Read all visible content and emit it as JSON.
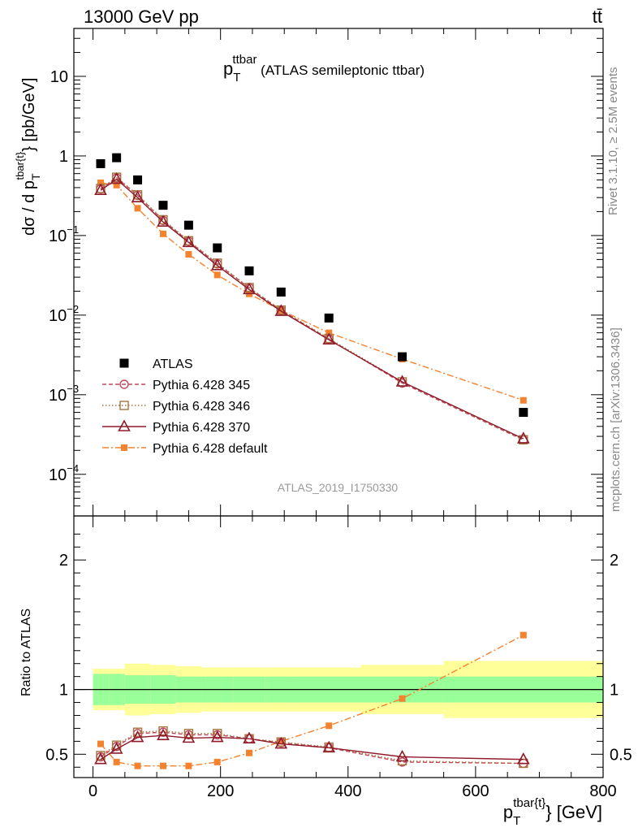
{
  "header": {
    "energy": "13000 GeV pp",
    "process": "tt̄"
  },
  "plot_title": {
    "main": "p",
    "sub": "T",
    "sup": "ttbar",
    "rest": " (ATLAS semileptonic ttbar)"
  },
  "analysis_id": "ATLAS_2019_I1750330",
  "side_labels": {
    "rivet": "Rivet 3.1.10, ≥ 2.5M events",
    "mcplots": "mcplots.cern.ch [arXiv:1306.3436]"
  },
  "labels": {
    "main_ylabel": {
      "pre": "dσ / d p",
      "sub": "T",
      "sup": "tbar{t}",
      "post": "} [pb/GeV]"
    },
    "ratio_ylabel": "Ratio to ATLAS",
    "xlabel": {
      "pre": "p",
      "sub": "T",
      "sup": "tbar{t}",
      "post": "} [GeV]"
    }
  },
  "colors": {
    "atlas": "#000000",
    "p345": "#c0475e",
    "p346": "#a4753e",
    "p370": "#8f1b2a",
    "pdefault": "#f4822f",
    "band_inner": "#99ff99",
    "band_outer": "#ffff99"
  },
  "chart_data": [
    {
      "type": "scatter",
      "panel": "main",
      "yscale": "log",
      "xlim": [
        -30,
        800
      ],
      "ylim": [
        3e-05,
        40
      ],
      "x_ticks": [
        0,
        200,
        400,
        600,
        800
      ],
      "y_ticks": [
        {
          "value": 0.0001,
          "label": "10",
          "exp": "−4"
        },
        {
          "value": 0.001,
          "label": "10",
          "exp": "−3"
        },
        {
          "value": 0.01,
          "label": "10",
          "exp": "−2"
        },
        {
          "value": 0.1,
          "label": "10",
          "exp": "−1"
        },
        {
          "value": 1,
          "label": "1",
          "exp": ""
        },
        {
          "value": 10,
          "label": "10",
          "exp": ""
        }
      ],
      "x": [
        12,
        37,
        70,
        110,
        150,
        195,
        245,
        295,
        370,
        485,
        675
      ],
      "series": [
        {
          "key": "atlas",
          "name": "ATLAS",
          "style": "square-marker",
          "values": [
            0.8,
            0.95,
            0.5,
            0.24,
            0.135,
            0.07,
            0.036,
            0.0195,
            0.0092,
            0.003,
            0.0006
          ]
        },
        {
          "key": "p345",
          "name": "Pythia 6.428 345",
          "style": "dashed-circle",
          "values": [
            0.385,
            0.53,
            0.32,
            0.155,
            0.085,
            0.044,
            0.022,
            0.0115,
            0.005,
            0.0014,
            0.00027
          ]
        },
        {
          "key": "p346",
          "name": "Pythia 6.428 346",
          "style": "dotted-square",
          "values": [
            0.39,
            0.54,
            0.325,
            0.158,
            0.086,
            0.045,
            0.0222,
            0.0116,
            0.0051,
            0.00145,
            0.000272
          ]
        },
        {
          "key": "p370",
          "name": "Pythia 6.428 370",
          "style": "solid-triangle",
          "values": [
            0.37,
            0.51,
            0.3,
            0.148,
            0.082,
            0.042,
            0.021,
            0.0112,
            0.0049,
            0.00145,
            0.00028
          ]
        },
        {
          "key": "pdefault",
          "name": "Pythia 6.428 default",
          "style": "dashdot-filled-square",
          "values": [
            0.46,
            0.43,
            0.22,
            0.105,
            0.058,
            0.032,
            0.0185,
            0.0115,
            0.006,
            0.0028,
            0.00085
          ]
        }
      ],
      "legend_placement": "lower-left"
    },
    {
      "type": "line",
      "panel": "ratio",
      "xlim": [
        -30,
        800
      ],
      "ylim": [
        0.32,
        2.34
      ],
      "x_ticks": [
        0,
        200,
        400,
        600,
        800
      ],
      "y_ticks": [
        0.5,
        1,
        2
      ],
      "x": [
        12,
        37,
        70,
        110,
        150,
        195,
        245,
        295,
        370,
        485,
        675
      ],
      "bins": [
        0,
        25,
        50,
        90,
        130,
        170,
        220,
        270,
        320,
        420,
        550,
        800
      ],
      "band_inner": [
        0.12,
        0.12,
        0.11,
        0.11,
        0.1,
        0.1,
        0.1,
        0.1,
        0.1,
        0.1,
        0.1
      ],
      "band_outer": [
        0.16,
        0.16,
        0.2,
        0.19,
        0.18,
        0.17,
        0.17,
        0.17,
        0.17,
        0.19,
        0.22
      ],
      "reference": 1,
      "series": [
        {
          "key": "p345",
          "name": "Pythia 6.428 345",
          "values": [
            0.48,
            0.56,
            0.66,
            0.67,
            0.65,
            0.65,
            0.62,
            0.59,
            0.55,
            0.44,
            0.43
          ]
        },
        {
          "key": "p346",
          "name": "Pythia 6.428 346",
          "values": [
            0.49,
            0.57,
            0.67,
            0.68,
            0.66,
            0.66,
            0.62,
            0.595,
            0.555,
            0.45,
            0.43
          ]
        },
        {
          "key": "p370",
          "name": "Pythia 6.428 370",
          "values": [
            0.46,
            0.54,
            0.63,
            0.645,
            0.625,
            0.63,
            0.62,
            0.58,
            0.55,
            0.48,
            0.46
          ]
        },
        {
          "key": "pdefault",
          "name": "Pythia 6.428 default",
          "values": [
            0.58,
            0.44,
            0.41,
            0.41,
            0.41,
            0.44,
            0.51,
            0.6,
            0.72,
            0.93,
            1.42
          ]
        }
      ]
    }
  ]
}
